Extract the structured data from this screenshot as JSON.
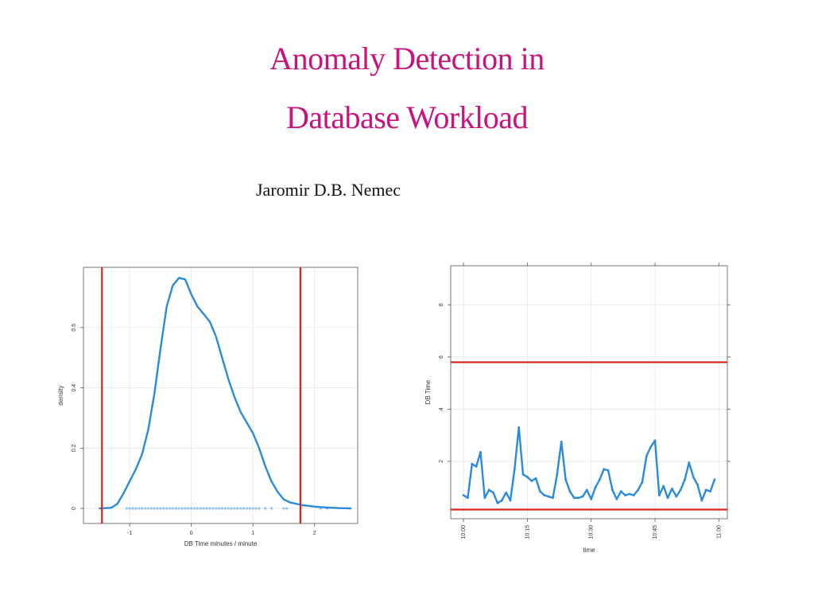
{
  "slide": {
    "title_line1": "Anomaly Detection in",
    "title_line2": "Database Workload",
    "author": "Jaromir  D.B. Nemec",
    "title_color": "#c8127c"
  },
  "chart_data": [
    {
      "type": "line",
      "xlabel": "DB Time minutes / minute",
      "ylabel": "density",
      "xlim": [
        -1.75,
        2.7
      ],
      "ylim": [
        -0.05,
        0.8
      ],
      "x_ticks": [
        -1,
        0,
        1,
        2
      ],
      "y_ticks": [
        0.0,
        0.2,
        0.4,
        0.6
      ],
      "grid": true,
      "series": [
        {
          "color": "#2a8bdc",
          "x": [
            -1.5,
            -1.3,
            -1.2,
            -1.1,
            -1.0,
            -0.9,
            -0.8,
            -0.7,
            -0.6,
            -0.5,
            -0.4,
            -0.3,
            -0.2,
            -0.1,
            0.0,
            0.1,
            0.2,
            0.3,
            0.4,
            0.5,
            0.6,
            0.7,
            0.8,
            0.9,
            1.0,
            1.1,
            1.2,
            1.3,
            1.4,
            1.5,
            1.6,
            1.8,
            2.0,
            2.2,
            2.4,
            2.6
          ],
          "y": [
            0.0,
            0.002,
            0.015,
            0.05,
            0.09,
            0.13,
            0.18,
            0.26,
            0.38,
            0.53,
            0.67,
            0.74,
            0.765,
            0.76,
            0.71,
            0.67,
            0.645,
            0.62,
            0.57,
            0.5,
            0.43,
            0.37,
            0.32,
            0.285,
            0.25,
            0.2,
            0.14,
            0.09,
            0.055,
            0.03,
            0.02,
            0.011,
            0.006,
            0.003,
            0.001,
            0.0
          ]
        }
      ],
      "rug": [
        -1.05,
        -1.0,
        -0.95,
        -0.9,
        -0.85,
        -0.8,
        -0.75,
        -0.7,
        -0.65,
        -0.6,
        -0.55,
        -0.5,
        -0.45,
        -0.4,
        -0.35,
        -0.3,
        -0.25,
        -0.2,
        -0.15,
        -0.1,
        -0.05,
        0.0,
        0.05,
        0.1,
        0.15,
        0.2,
        0.25,
        0.3,
        0.35,
        0.4,
        0.45,
        0.5,
        0.55,
        0.6,
        0.65,
        0.7,
        0.75,
        0.8,
        0.85,
        0.9,
        0.95,
        1.0,
        1.05,
        1.1,
        1.2,
        1.3,
        1.5,
        1.55,
        2.1,
        2.2
      ],
      "thresholds": {
        "orientation": "vertical",
        "values": [
          -1.45,
          1.77
        ],
        "color": "#e0201c"
      }
    },
    {
      "type": "line",
      "xlabel": "time",
      "ylabel": "DB Time",
      "xlim": [
        "9:57",
        "11:02"
      ],
      "ylim": [
        -0.2,
        9.5
      ],
      "x_ticks": [
        "10:00",
        "10:15",
        "10:30",
        "10:45",
        "11:00"
      ],
      "y_ticks": [
        2,
        4,
        6,
        8
      ],
      "grid": true,
      "series": [
        {
          "color": "#2a8bdc",
          "x": [
            "10:00",
            "10:01",
            "10:02",
            "10:03",
            "10:04",
            "10:05",
            "10:06",
            "10:07",
            "10:08",
            "10:09",
            "10:10",
            "10:11",
            "10:12",
            "10:13",
            "10:14",
            "10:15",
            "10:16",
            "10:17",
            "10:18",
            "10:19",
            "10:20",
            "10:21",
            "10:22",
            "10:23",
            "10:24",
            "10:25",
            "10:26",
            "10:27",
            "10:28",
            "10:29",
            "10:30",
            "10:31",
            "10:32",
            "10:33",
            "10:34",
            "10:35",
            "10:36",
            "10:37",
            "10:38",
            "10:39",
            "10:40",
            "10:41",
            "10:42",
            "10:43",
            "10:44",
            "10:45",
            "10:46",
            "10:47",
            "10:48",
            "10:49",
            "10:50",
            "10:51",
            "10:52",
            "10:53",
            "10:54",
            "10:55",
            "10:56",
            "10:57",
            "10:58",
            "10:59"
          ],
          "y": [
            0.7,
            0.6,
            1.9,
            1.8,
            2.35,
            0.6,
            0.9,
            0.8,
            0.4,
            0.5,
            0.8,
            0.5,
            1.7,
            3.3,
            1.5,
            1.4,
            1.25,
            1.35,
            0.85,
            0.7,
            0.65,
            0.6,
            1.5,
            2.75,
            1.3,
            0.85,
            0.6,
            0.6,
            0.65,
            0.9,
            0.55,
            1.0,
            1.3,
            1.7,
            1.65,
            0.9,
            0.55,
            0.85,
            0.7,
            0.75,
            0.7,
            0.9,
            1.2,
            2.2,
            2.55,
            2.8,
            0.7,
            1.05,
            0.6,
            0.95,
            0.65,
            0.9,
            1.3,
            1.95,
            1.4,
            1.1,
            0.5,
            0.9,
            0.85,
            1.3
          ]
        }
      ],
      "thresholds": {
        "orientation": "horizontal",
        "values": [
          5.8,
          0.15
        ],
        "color": "#e0201c"
      }
    }
  ]
}
